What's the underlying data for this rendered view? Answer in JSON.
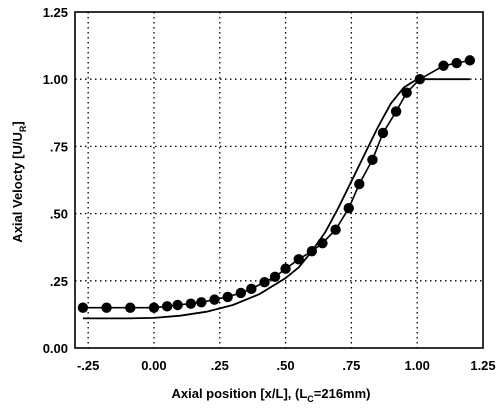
{
  "chart_data": {
    "type": "line",
    "title": "",
    "xlabel": {
      "pre": "Axial position  [x/L], (L",
      "sub": "C",
      "post": "=216mm)"
    },
    "ylabel": {
      "pre": "Axial Velocty [U/U",
      "sub": "R",
      "post": "]"
    },
    "xlim": [
      -0.3,
      1.25
    ],
    "ylim": [
      0.0,
      1.25
    ],
    "grid": true,
    "x_ticks": [
      {
        "value": -0.25,
        "label": "-.25"
      },
      {
        "value": 0.0,
        "label": "0.00"
      },
      {
        "value": 0.25,
        "label": ".25"
      },
      {
        "value": 0.5,
        "label": ".50"
      },
      {
        "value": 0.75,
        "label": ".75"
      },
      {
        "value": 1.0,
        "label": "1.00"
      },
      {
        "value": 1.25,
        "label": "1.25"
      }
    ],
    "y_ticks": [
      {
        "value": 0.0,
        "label": "0.00"
      },
      {
        "value": 0.25,
        "label": ".25"
      },
      {
        "value": 0.5,
        "label": ".50"
      },
      {
        "value": 0.75,
        "label": ".75"
      },
      {
        "value": 1.0,
        "label": "1.00"
      },
      {
        "value": 1.25,
        "label": "1.25"
      }
    ],
    "series": [
      {
        "style": "line-markers",
        "color": "#000000",
        "x": [
          -0.27,
          -0.18,
          -0.09,
          0.0,
          0.05,
          0.09,
          0.14,
          0.18,
          0.23,
          0.28,
          0.33,
          0.37,
          0.42,
          0.46,
          0.5,
          0.55,
          0.6,
          0.64,
          0.69,
          0.74,
          0.78,
          0.83,
          0.87,
          0.92,
          0.96,
          1.01,
          1.1,
          1.15,
          1.2
        ],
        "y": [
          0.15,
          0.15,
          0.15,
          0.15,
          0.155,
          0.16,
          0.165,
          0.17,
          0.18,
          0.19,
          0.205,
          0.22,
          0.245,
          0.265,
          0.295,
          0.33,
          0.36,
          0.39,
          0.44,
          0.52,
          0.61,
          0.7,
          0.8,
          0.88,
          0.95,
          1.0,
          1.05,
          1.06,
          1.07
        ]
      },
      {
        "style": "line",
        "color": "#000000",
        "x": [
          -0.27,
          -0.2,
          -0.1,
          0.0,
          0.1,
          0.2,
          0.3,
          0.4,
          0.5,
          0.55,
          0.6,
          0.65,
          0.7,
          0.75,
          0.8,
          0.85,
          0.9,
          0.95,
          1.0,
          1.2
        ],
        "y": [
          0.11,
          0.11,
          0.11,
          0.112,
          0.12,
          0.135,
          0.16,
          0.2,
          0.26,
          0.3,
          0.36,
          0.43,
          0.52,
          0.62,
          0.72,
          0.82,
          0.91,
          0.97,
          1.0,
          1.0
        ]
      }
    ]
  }
}
